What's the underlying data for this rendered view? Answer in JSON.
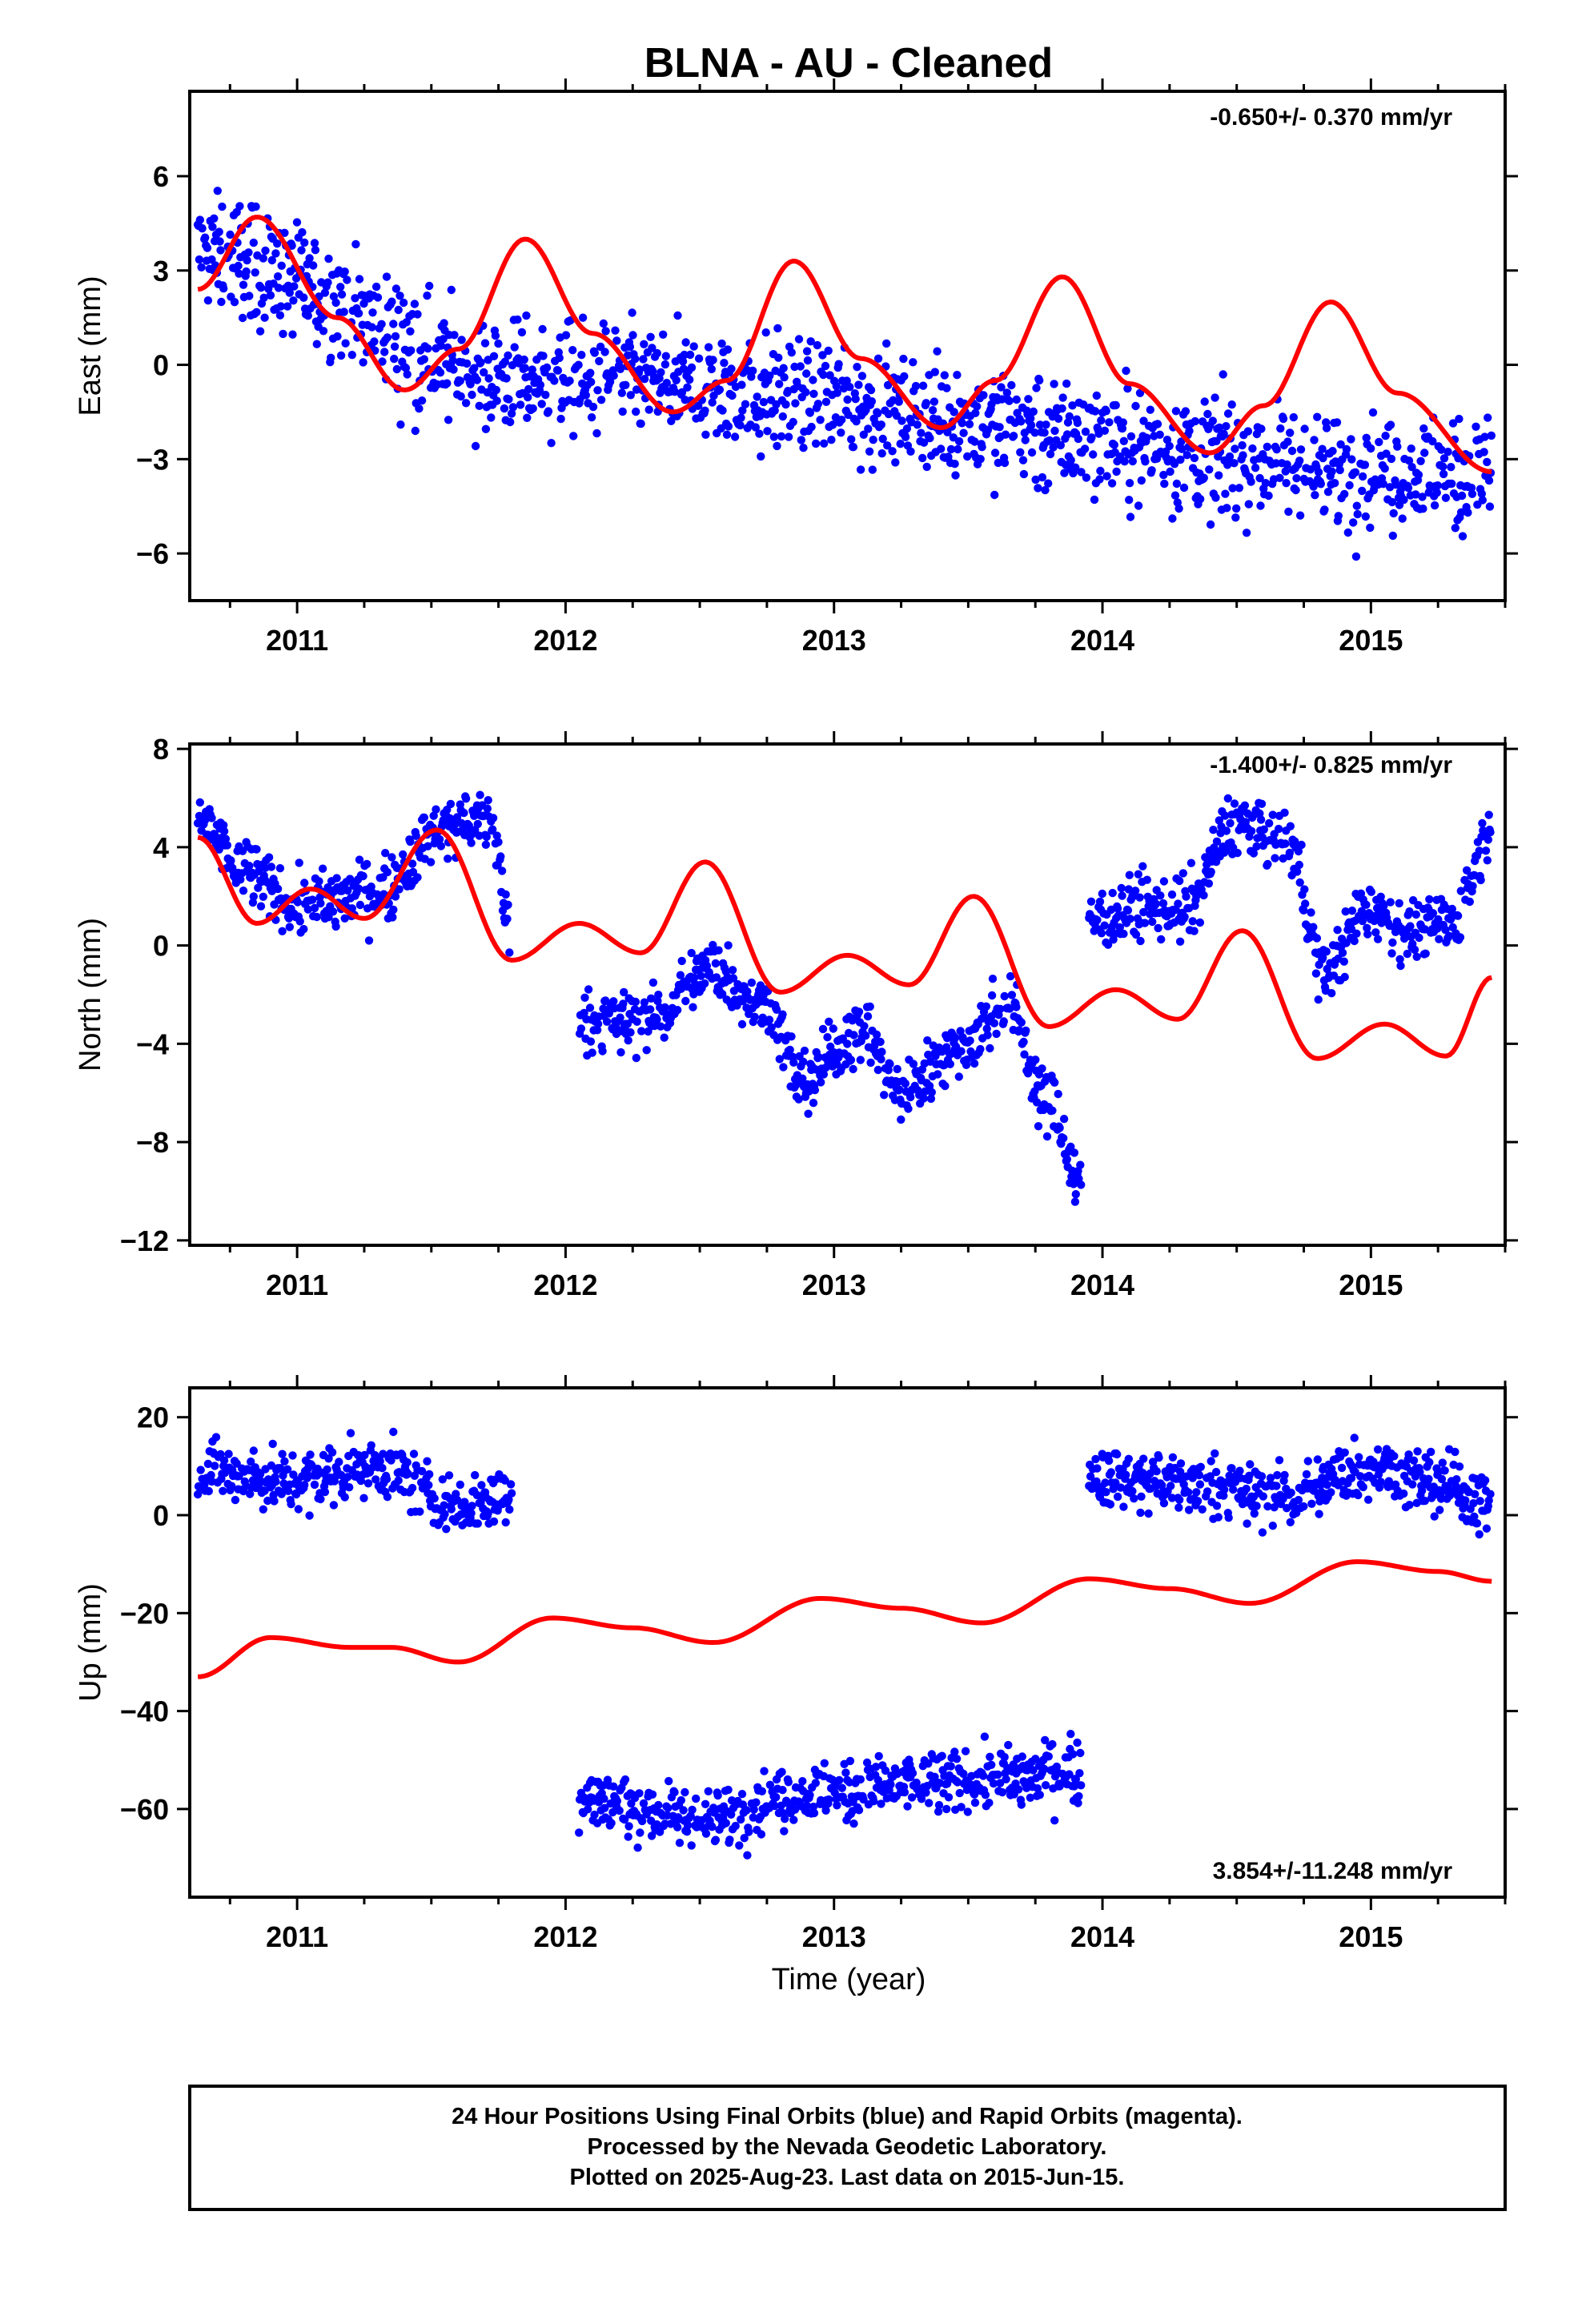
{
  "title": "BLNA  - AU - Cleaned",
  "xlabel": "Time (year)",
  "footer": {
    "line1": "24 Hour Positions Using Final Orbits (blue) and Rapid Orbits (magenta).",
    "line2": "Processed by the Nevada Geodetic Laboratory.",
    "line3": "Plotted on 2025-Aug-23. Last data on 2015-Jun-15."
  },
  "colors": {
    "data": "#0000ff",
    "model": "#ff0000",
    "axis": "#000000"
  },
  "chart_data": [
    {
      "type": "scatter",
      "name": "east",
      "ylabel": "East (mm)",
      "rate": "-0.650+/- 0.370 mm/yr",
      "rate_position": "top-right",
      "xlim": [
        2010.6,
        2015.5
      ],
      "ylim": [
        -7.5,
        8.7
      ],
      "yticks": [
        -6,
        -3,
        0,
        3,
        6
      ],
      "xticks": [
        2011,
        2012,
        2013,
        2014,
        2015
      ],
      "xtick_labels": [
        "2011",
        "2012",
        "2013",
        "2014",
        "2015"
      ],
      "data_range": [
        2010.63,
        2015.45
      ],
      "data_segments": [
        {
          "x": [
            2010.63,
            2011.85,
            2011.9,
            2015.45
          ],
          "y": [
            3.5,
            -0.5,
            -0.5,
            -3.5
          ]
        }
      ],
      "model": {
        "x": [
          2010.63,
          2010.85,
          2011.15,
          2011.4,
          2011.6,
          2011.85,
          2012.1,
          2012.4,
          2012.6,
          2012.85,
          2013.1,
          2013.4,
          2013.6,
          2013.85,
          2014.1,
          2014.4,
          2014.6,
          2014.85,
          2015.1,
          2015.45
        ],
        "y": [
          2.4,
          4.7,
          1.5,
          -0.8,
          0.5,
          4.0,
          1.0,
          -1.5,
          -0.5,
          3.3,
          0.2,
          -2.0,
          -0.5,
          2.8,
          -0.6,
          -2.8,
          -1.3,
          2.0,
          -0.9,
          -3.4
        ]
      },
      "scatter_amplitude": 1.3
    },
    {
      "type": "scatter",
      "name": "north",
      "ylabel": "North (mm)",
      "rate": "-1.400+/- 0.825 mm/yr",
      "rate_position": "top-right",
      "xlim": [
        2010.6,
        2015.5
      ],
      "ylim": [
        -12.2,
        8.2
      ],
      "yticks": [
        -12,
        -8,
        -4,
        0,
        4,
        8
      ],
      "xticks": [
        2011,
        2012,
        2013,
        2014,
        2015
      ],
      "xtick_labels": [
        "2011",
        "2012",
        "2013",
        "2014",
        "2015"
      ],
      "data_segments": [
        {
          "x": [
            2010.63,
            2010.8,
            2011.0,
            2011.3,
            2011.55,
            2011.72,
            2011.8
          ],
          "y": [
            5.2,
            3.0,
            1.6,
            2.2,
            4.8,
            5.0,
            0.5
          ]
        },
        {
          "x": [
            2012.05,
            2012.3,
            2012.55,
            2012.75,
            2012.88,
            2013.1,
            2013.25,
            2013.45,
            2013.65,
            2013.8,
            2013.92
          ],
          "y": [
            -3.2,
            -3.0,
            -1.0,
            -2.5,
            -5.5,
            -3.5,
            -6.0,
            -4.2,
            -2.5,
            -6.5,
            -9.5
          ]
        },
        {
          "x": [
            2013.95,
            2014.1,
            2014.3,
            2014.5,
            2014.7,
            2014.82,
            2015.0,
            2015.15,
            2015.3,
            2015.45
          ],
          "y": [
            1.0,
            1.5,
            1.5,
            5.0,
            4.0,
            -1.0,
            1.5,
            0.5,
            1.0,
            4.5
          ]
        }
      ],
      "model": {
        "x": [
          2010.63,
          2010.85,
          2011.05,
          2011.25,
          2011.52,
          2011.8,
          2012.05,
          2012.28,
          2012.52,
          2012.8,
          2013.05,
          2013.28,
          2013.52,
          2013.8,
          2014.05,
          2014.28,
          2014.52,
          2014.8,
          2015.05,
          2015.28,
          2015.45
        ],
        "y": [
          4.4,
          0.9,
          2.3,
          1.1,
          4.7,
          -0.6,
          0.9,
          -0.3,
          3.4,
          -1.9,
          -0.4,
          -1.6,
          2.0,
          -3.3,
          -1.8,
          -3.0,
          0.6,
          -4.6,
          -3.2,
          -4.5,
          -1.3
        ]
      },
      "scatter_amplitude": 0.9
    },
    {
      "type": "scatter",
      "name": "up",
      "ylabel": "Up (mm)",
      "rate": "3.854+/-11.248 mm/yr",
      "rate_position": "bottom-right",
      "xlim": [
        2010.6,
        2015.5
      ],
      "ylim": [
        -78,
        26
      ],
      "yticks": [
        -60,
        -40,
        -20,
        0,
        20
      ],
      "xticks": [
        2011,
        2012,
        2013,
        2014,
        2015
      ],
      "xtick_labels": [
        "2011",
        "2012",
        "2013",
        "2014",
        "2015"
      ],
      "data_segments": [
        {
          "x": [
            2010.63,
            2011.0,
            2011.3,
            2011.6,
            2011.8
          ],
          "y": [
            9,
            7,
            10,
            2,
            5
          ]
        },
        {
          "x": [
            2012.05,
            2012.5,
            2012.9,
            2013.3,
            2013.6,
            2013.92
          ],
          "y": [
            -58,
            -62,
            -57,
            -55,
            -54,
            -52
          ]
        },
        {
          "x": [
            2013.95,
            2014.3,
            2014.7,
            2015.0,
            2015.2,
            2015.45
          ],
          "y": [
            8,
            6,
            4,
            10,
            7,
            3
          ]
        }
      ],
      "model": {
        "x": [
          2010.63,
          2010.9,
          2011.2,
          2011.35,
          2011.6,
          2011.95,
          2012.25,
          2012.55,
          2012.95,
          2013.25,
          2013.55,
          2013.95,
          2014.25,
          2014.55,
          2014.95,
          2015.25,
          2015.45
        ],
        "y": [
          -33,
          -25,
          -27,
          -27,
          -30,
          -21,
          -23,
          -26,
          -17,
          -19,
          -22,
          -13,
          -15,
          -18,
          -9.5,
          -11.5,
          -13.5
        ]
      },
      "scatter_amplitude": 4.5
    }
  ]
}
